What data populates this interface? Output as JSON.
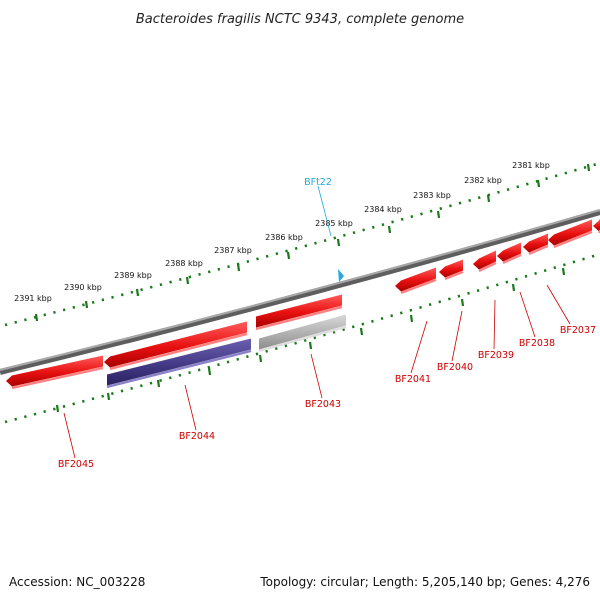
{
  "title": "Bacteroides fragilis NCTC 9343, complete genome",
  "footer": {
    "accession": "Accession: NC_003228",
    "summary": "Topology: circular; Length: 5,205,140 bp; Genes: 4,276"
  },
  "colors": {
    "backbone": "#888888",
    "gene_red": "#ee1111",
    "gene_purple": "#4a3f8c",
    "gene_gray": "#b4b4b4",
    "tick_green": "#1a7a1a",
    "label_red": "#cc0000",
    "label_cyan": "#22aadd"
  },
  "scale": {
    "unit": "kbp",
    "labels": [
      "2381 kbp",
      "2382 kbp",
      "2383 kbp",
      "2384 kbp",
      "2385 kbp",
      "2386 kbp",
      "2387 kbp",
      "2388 kbp",
      "2389 kbp",
      "2390 kbp",
      "2391 kbp"
    ]
  },
  "genes": [
    {
      "label": "BF2037",
      "strand": "reverse",
      "color": "red"
    },
    {
      "label": "BF2038",
      "strand": "reverse",
      "color": "red"
    },
    {
      "label": "BF2039",
      "strand": "reverse",
      "color": "red"
    },
    {
      "label": "BF2040",
      "strand": "reverse",
      "color": "red"
    },
    {
      "label": "BF2041",
      "strand": "reverse",
      "color": "red"
    },
    {
      "label": "BF2043",
      "strand": "forward",
      "color": "red"
    },
    {
      "label": "BF2044",
      "strand": "reverse",
      "color": "red"
    },
    {
      "label": "BF2045",
      "strand": "reverse",
      "color": "red"
    }
  ],
  "tracks": [
    {
      "color": "gray",
      "row": "inner"
    },
    {
      "color": "purple",
      "row": "inner"
    }
  ],
  "features": [
    {
      "label": "BFt22",
      "type": "tRNA",
      "color": "cyan"
    }
  ]
}
